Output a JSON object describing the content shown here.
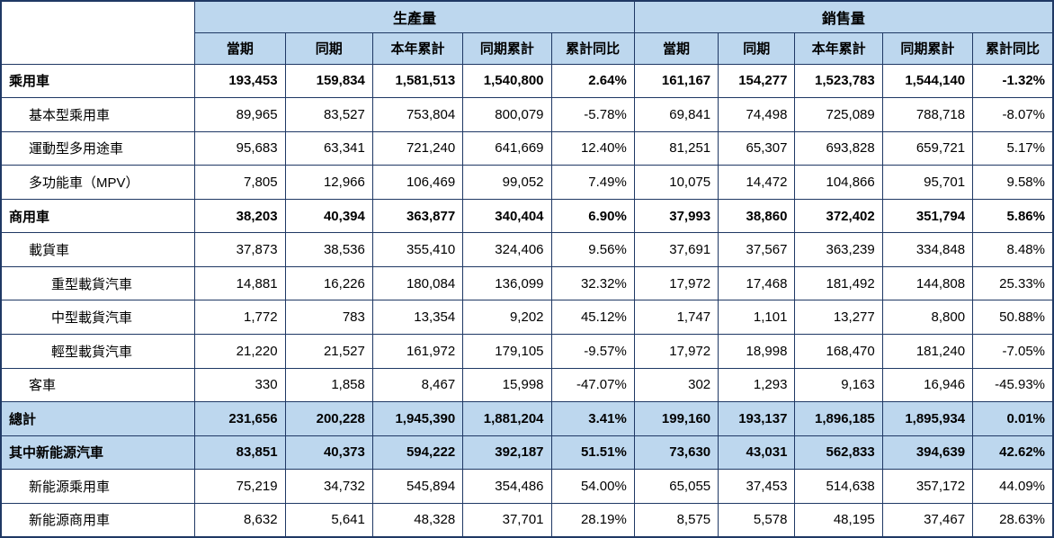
{
  "colors": {
    "header_bg": "#BDD7EE",
    "border": "#1F3864",
    "row_bg": "#FFFFFF",
    "text": "#000000"
  },
  "chart_data": {
    "type": "table",
    "column_groups": [
      "生產量",
      "銷售量"
    ],
    "sub_columns": [
      "當期",
      "同期",
      "本年累計",
      "同期累計",
      "累計同比"
    ],
    "rows": [
      {
        "label": "乘用車",
        "indent": 0,
        "bold": true,
        "highlight": false,
        "production": [
          "193,453",
          "159,834",
          "1,581,513",
          "1,540,800",
          "2.64%"
        ],
        "sales": [
          "161,167",
          "154,277",
          "1,523,783",
          "1,544,140",
          "-1.32%"
        ]
      },
      {
        "label": "基本型乘用車",
        "indent": 1,
        "bold": false,
        "highlight": false,
        "production": [
          "89,965",
          "83,527",
          "753,804",
          "800,079",
          "-5.78%"
        ],
        "sales": [
          "69,841",
          "74,498",
          "725,089",
          "788,718",
          "-8.07%"
        ]
      },
      {
        "label": "運動型多用途車",
        "indent": 1,
        "bold": false,
        "highlight": false,
        "production": [
          "95,683",
          "63,341",
          "721,240",
          "641,669",
          "12.40%"
        ],
        "sales": [
          "81,251",
          "65,307",
          "693,828",
          "659,721",
          "5.17%"
        ]
      },
      {
        "label": "多功能車（MPV）",
        "indent": 1,
        "bold": false,
        "highlight": false,
        "production": [
          "7,805",
          "12,966",
          "106,469",
          "99,052",
          "7.49%"
        ],
        "sales": [
          "10,075",
          "14,472",
          "104,866",
          "95,701",
          "9.58%"
        ]
      },
      {
        "label": "商用車",
        "indent": 0,
        "bold": true,
        "highlight": false,
        "production": [
          "38,203",
          "40,394",
          "363,877",
          "340,404",
          "6.90%"
        ],
        "sales": [
          "37,993",
          "38,860",
          "372,402",
          "351,794",
          "5.86%"
        ]
      },
      {
        "label": "載貨車",
        "indent": 1,
        "bold": false,
        "highlight": false,
        "production": [
          "37,873",
          "38,536",
          "355,410",
          "324,406",
          "9.56%"
        ],
        "sales": [
          "37,691",
          "37,567",
          "363,239",
          "334,848",
          "8.48%"
        ]
      },
      {
        "label": "重型載貨汽車",
        "indent": 2,
        "bold": false,
        "highlight": false,
        "production": [
          "14,881",
          "16,226",
          "180,084",
          "136,099",
          "32.32%"
        ],
        "sales": [
          "17,972",
          "17,468",
          "181,492",
          "144,808",
          "25.33%"
        ]
      },
      {
        "label": "中型載貨汽車",
        "indent": 2,
        "bold": false,
        "highlight": false,
        "production": [
          "1,772",
          "783",
          "13,354",
          "9,202",
          "45.12%"
        ],
        "sales": [
          "1,747",
          "1,101",
          "13,277",
          "8,800",
          "50.88%"
        ]
      },
      {
        "label": "輕型載貨汽車",
        "indent": 2,
        "bold": false,
        "highlight": false,
        "production": [
          "21,220",
          "21,527",
          "161,972",
          "179,105",
          "-9.57%"
        ],
        "sales": [
          "17,972",
          "18,998",
          "168,470",
          "181,240",
          "-7.05%"
        ]
      },
      {
        "label": "客車",
        "indent": 1,
        "bold": false,
        "highlight": false,
        "production": [
          "330",
          "1,858",
          "8,467",
          "15,998",
          "-47.07%"
        ],
        "sales": [
          "302",
          "1,293",
          "9,163",
          "16,946",
          "-45.93%"
        ]
      },
      {
        "label": "總計",
        "indent": 0,
        "bold": true,
        "highlight": true,
        "production": [
          "231,656",
          "200,228",
          "1,945,390",
          "1,881,204",
          "3.41%"
        ],
        "sales": [
          "199,160",
          "193,137",
          "1,896,185",
          "1,895,934",
          "0.01%"
        ]
      },
      {
        "label": "其中新能源汽車",
        "indent": 0,
        "bold": true,
        "highlight": true,
        "production": [
          "83,851",
          "40,373",
          "594,222",
          "392,187",
          "51.51%"
        ],
        "sales": [
          "73,630",
          "43,031",
          "562,833",
          "394,639",
          "42.62%"
        ]
      },
      {
        "label": "新能源乘用車",
        "indent": 1,
        "bold": false,
        "highlight": false,
        "production": [
          "75,219",
          "34,732",
          "545,894",
          "354,486",
          "54.00%"
        ],
        "sales": [
          "65,055",
          "37,453",
          "514,638",
          "357,172",
          "44.09%"
        ]
      },
      {
        "label": "新能源商用車",
        "indent": 1,
        "bold": false,
        "highlight": false,
        "production": [
          "8,632",
          "5,641",
          "48,328",
          "37,701",
          "28.19%"
        ],
        "sales": [
          "8,575",
          "5,578",
          "48,195",
          "37,467",
          "28.63%"
        ]
      }
    ]
  }
}
